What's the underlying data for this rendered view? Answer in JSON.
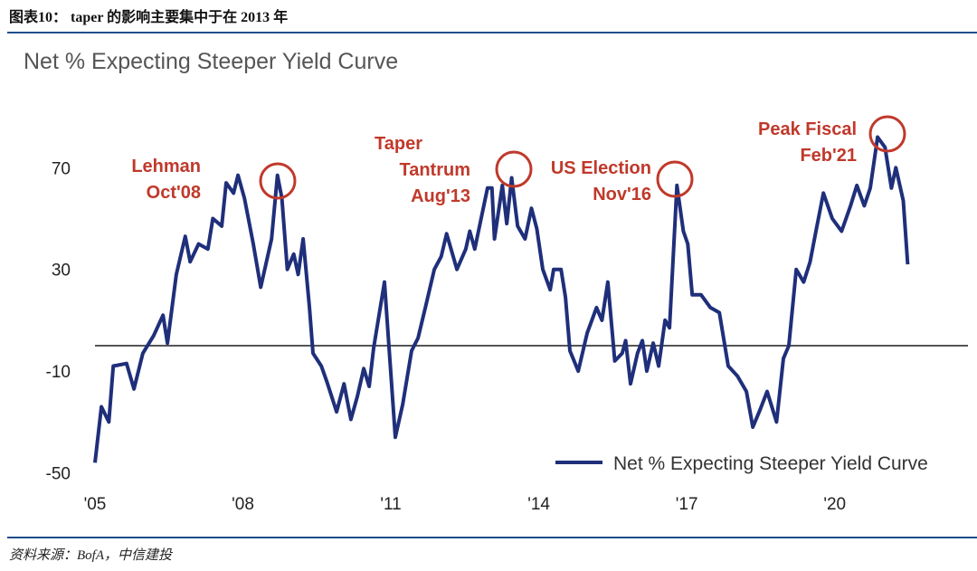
{
  "header": {
    "title": "图表10： taper 的影响主要集中于在 2013 年"
  },
  "chart_data": {
    "type": "line",
    "title": "Net % Expecting Steeper Yield Curve",
    "x": [
      2005.0,
      2005.13,
      2005.28,
      2005.37,
      2005.64,
      2005.79,
      2005.97,
      2006.19,
      2006.38,
      2006.47,
      2006.65,
      2006.83,
      2006.93,
      2007.1,
      2007.29,
      2007.39,
      2007.57,
      2007.66,
      2007.81,
      2007.9,
      2008.03,
      2008.21,
      2008.36,
      2008.58,
      2008.7,
      2008.79,
      2008.9,
      2009.03,
      2009.12,
      2009.22,
      2009.35,
      2009.42,
      2009.59,
      2009.7,
      2009.9,
      2010.05,
      2010.19,
      2010.32,
      2010.45,
      2010.56,
      2010.65,
      2010.87,
      2010.96,
      2011.09,
      2011.24,
      2011.42,
      2011.55,
      2011.7,
      2011.88,
      2012.02,
      2012.13,
      2012.34,
      2012.52,
      2012.6,
      2012.7,
      2012.96,
      2013.05,
      2013.1,
      2013.26,
      2013.35,
      2013.45,
      2013.57,
      2013.72,
      2013.85,
      2013.96,
      2014.08,
      2014.23,
      2014.3,
      2014.45,
      2014.54,
      2014.63,
      2014.8,
      2014.98,
      2015.17,
      2015.28,
      2015.4,
      2015.54,
      2015.69,
      2015.76,
      2015.86,
      2016.0,
      2016.1,
      2016.19,
      2016.32,
      2016.43,
      2016.56,
      2016.65,
      2016.8,
      2016.93,
      2017.02,
      2017.11,
      2017.29,
      2017.48,
      2017.66,
      2017.84,
      2018.03,
      2018.21,
      2018.34,
      2018.49,
      2018.63,
      2018.82,
      2018.96,
      2019.07,
      2019.22,
      2019.37,
      2019.5,
      2019.63,
      2019.77,
      2019.95,
      2020.14,
      2020.32,
      2020.45,
      2020.6,
      2020.72,
      2020.87,
      2021.02,
      2021.15,
      2021.24,
      2021.39,
      2021.48
    ],
    "series": [
      {
        "name": "Net % Expecting Steeper Yield Curve",
        "color": "#1f2f7a",
        "values": [
          -46,
          -24,
          -30,
          -8,
          -7,
          -17,
          -3,
          4,
          12,
          1,
          28,
          43,
          33,
          40,
          38,
          50,
          47,
          64,
          60,
          67,
          58,
          40,
          23,
          42,
          67,
          58,
          30,
          36,
          28,
          42,
          15,
          -3,
          -8,
          -14,
          -26,
          -15,
          -29,
          -20,
          -9,
          -16,
          -1,
          25,
          0,
          -36,
          -23,
          -2,
          3,
          15,
          30,
          35,
          44,
          30,
          38,
          45,
          38,
          62,
          62,
          42,
          63,
          48,
          66,
          47,
          42,
          54,
          46,
          30,
          22,
          30,
          30,
          19,
          -2,
          -10,
          5,
          15,
          10,
          25,
          -6,
          -3,
          2,
          -15,
          -3,
          2,
          -10,
          1,
          -8,
          10,
          7,
          63,
          45,
          40,
          20,
          20,
          15,
          13,
          -8,
          -12,
          -18,
          -32,
          -25,
          -18,
          -30,
          -5,
          0,
          30,
          25,
          33,
          46,
          60,
          50,
          45,
          55,
          63,
          55,
          62,
          82,
          78,
          62,
          70,
          57,
          32
        ]
      }
    ],
    "xlim": [
      2005,
      2022.5
    ],
    "xticks": [
      {
        "value": 2005,
        "label": "'05"
      },
      {
        "value": 2008,
        "label": "'08"
      },
      {
        "value": 2011,
        "label": "'11"
      },
      {
        "value": 2014,
        "label": "'14"
      },
      {
        "value": 2017,
        "label": "'17"
      },
      {
        "value": 2020,
        "label": "'20"
      }
    ],
    "ylim": [
      -55,
      95
    ],
    "yticks": [
      -50,
      -10,
      30,
      70
    ],
    "reference_line": 0,
    "annotations": [
      {
        "lines": [
          "Lehman",
          "Oct'08"
        ]
      },
      {
        "lines": [
          "Taper",
          "Tantrum",
          "Aug'13"
        ]
      },
      {
        "lines": [
          "US Election",
          "Nov'16"
        ]
      },
      {
        "lines": [
          "Peak Fiscal",
          "Feb'21"
        ]
      }
    ]
  },
  "source": "资料来源：BofA，中信建投"
}
